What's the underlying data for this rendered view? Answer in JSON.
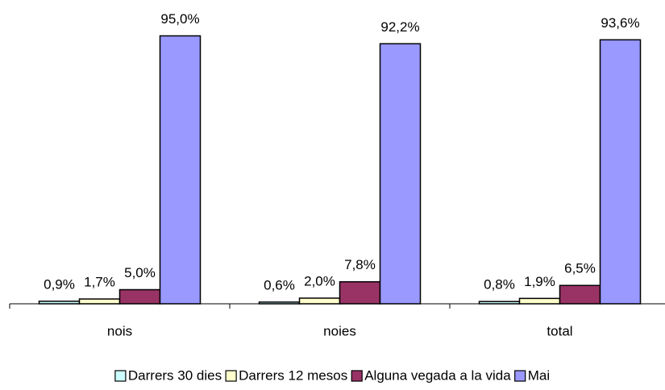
{
  "chart_data": {
    "type": "bar",
    "categories": [
      "nois",
      "noies",
      "total"
    ],
    "series": [
      {
        "name": "Darrers 30 dies",
        "color": "#ccffff",
        "values": [
          0.9,
          0.6,
          0.8
        ],
        "value_labels": [
          "0,9%",
          "0,6%",
          "0,8%"
        ]
      },
      {
        "name": "Darrers 12 mesos",
        "color": "#ffffcc",
        "values": [
          1.7,
          2.0,
          1.9
        ],
        "value_labels": [
          "1,7%",
          "2,0%",
          "1,9%"
        ]
      },
      {
        "name": "Alguna vegada a la vida",
        "color": "#993366",
        "values": [
          5.0,
          7.8,
          6.5
        ],
        "value_labels": [
          "5,0%",
          "7,8%",
          "6,5%"
        ]
      },
      {
        "name": "Mai",
        "color": "#9999ff",
        "values": [
          95.0,
          92.2,
          93.6
        ],
        "value_labels": [
          "95,0%",
          "92,2%",
          "93,6%"
        ]
      }
    ],
    "ylim": [
      0,
      100
    ],
    "legend": "bottom"
  }
}
